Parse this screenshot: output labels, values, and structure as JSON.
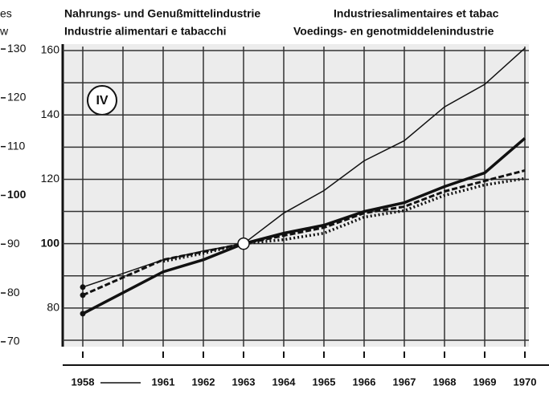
{
  "chart_data": {
    "type": "line",
    "titles": [
      "Nahrungs- und Genußmittelindustrie",
      "Industriesalimentaires et tabac",
      "Industrie alimentari e tabacchi",
      "Voedings- en genotmiddelenindustrie"
    ],
    "left_cut_labels": [
      "es",
      "w"
    ],
    "annotation": "IV",
    "categories": [
      "1958",
      "1961",
      "1962",
      "1963",
      "1964",
      "1965",
      "1966",
      "1967",
      "1968",
      "1969",
      "1970"
    ],
    "series": [
      {
        "color": "#111",
        "style": "thin",
        "values": [
          86.5,
          95,
          97.75,
          100,
          109.5,
          116.5,
          125.75,
          132,
          142.5,
          149.5,
          160.75
        ]
      },
      {
        "color": "#111",
        "style": "thick",
        "values": [
          78.25,
          91.25,
          95,
          100,
          103.25,
          105.75,
          110,
          112.75,
          117.75,
          122,
          132.75
        ]
      },
      {
        "color": "#111",
        "style": "dashed",
        "values": [
          84,
          95,
          97.5,
          100,
          102.5,
          105,
          109.5,
          111.5,
          116.25,
          119.5,
          122.75
        ]
      },
      {
        "color": "#111",
        "style": "dotted",
        "values": [
          null,
          94.5,
          97,
          100,
          101.25,
          103.25,
          108.25,
          110.25,
          115,
          118.25,
          120.25
        ]
      }
    ],
    "ylim": [
      68,
      162
    ],
    "yticks": [
      80,
      100,
      120,
      140,
      160
    ],
    "minor_yticks": [
      70,
      90,
      110,
      130,
      150
    ],
    "y2lim": [
      69,
      131
    ],
    "y2ticks": [
      70,
      80,
      90,
      100,
      110,
      120,
      130
    ],
    "grid": true
  }
}
